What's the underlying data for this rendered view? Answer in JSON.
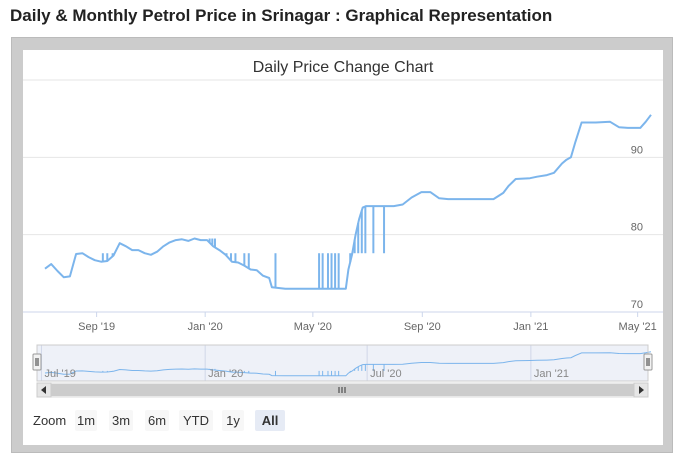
{
  "page": {
    "heading": "Daily & Monthly Petrol Price in Srinagar : Graphical Representation"
  },
  "chart_data": {
    "type": "line",
    "title": "Daily Price Change Chart",
    "xlabel": "",
    "ylabel": "",
    "ylim": [
      70,
      100
    ],
    "xlim": [
      "2019-07-05",
      "2021-05-16"
    ],
    "y_ticks": [
      "70",
      "80",
      "90"
    ],
    "x_ticks": [
      {
        "label": "Sep '19",
        "date": "2019-09-01"
      },
      {
        "label": "Jan '20",
        "date": "2020-01-01"
      },
      {
        "label": "May '20",
        "date": "2020-05-01"
      },
      {
        "label": "Sep '20",
        "date": "2020-09-01"
      },
      {
        "label": "Jan '21",
        "date": "2021-01-01"
      },
      {
        "label": "May '21",
        "date": "2021-05-01"
      }
    ],
    "grid": true,
    "legend": "none",
    "colors": {
      "line": "#7cb5ec",
      "grid": "#e6e6e6",
      "navigator_fill": "#e0e6f3",
      "navigator_mask": "#ccd6eb"
    },
    "series": [
      {
        "color": "#7cb5ec",
        "x": [
          "2019-07-05",
          "2019-07-12",
          "2019-07-19",
          "2019-07-26",
          "2019-08-02",
          "2019-08-09",
          "2019-08-16",
          "2019-08-23",
          "2019-08-30",
          "2019-09-06",
          "2019-09-13",
          "2019-09-20",
          "2019-09-27",
          "2019-10-04",
          "2019-10-11",
          "2019-10-18",
          "2019-10-25",
          "2019-11-01",
          "2019-11-08",
          "2019-11-15",
          "2019-11-22",
          "2019-11-29",
          "2019-12-06",
          "2019-12-13",
          "2019-12-20",
          "2019-12-27",
          "2020-01-03",
          "2020-01-10",
          "2020-01-17",
          "2020-01-24",
          "2020-01-31",
          "2020-02-07",
          "2020-02-14",
          "2020-02-21",
          "2020-02-28",
          "2020-03-06",
          "2020-03-13",
          "2020-03-16",
          "2020-03-31",
          "2020-04-15",
          "2020-05-01",
          "2020-05-15",
          "2020-05-31",
          "2020-06-07",
          "2020-06-10",
          "2020-06-14",
          "2020-06-18",
          "2020-06-22",
          "2020-06-26",
          "2020-06-30",
          "2020-07-15",
          "2020-07-31",
          "2020-08-10",
          "2020-08-20",
          "2020-08-31",
          "2020-09-10",
          "2020-09-20",
          "2020-09-30",
          "2020-10-15",
          "2020-10-31",
          "2020-11-15",
          "2020-11-20",
          "2020-12-01",
          "2020-12-07",
          "2020-12-15",
          "2020-12-31",
          "2021-01-08",
          "2021-01-19",
          "2021-01-27",
          "2021-02-05",
          "2021-02-10",
          "2021-02-15",
          "2021-02-20",
          "2021-02-27",
          "2021-03-15",
          "2021-03-31",
          "2021-04-10",
          "2021-04-20",
          "2021-05-04",
          "2021-05-10",
          "2021-05-16"
        ],
        "y": [
          75.6,
          76.2,
          75.3,
          74.5,
          74.6,
          77.5,
          77.6,
          77.1,
          76.7,
          76.5,
          76.6,
          77.3,
          78.9,
          78.5,
          78.0,
          78.0,
          77.6,
          77.4,
          77.8,
          78.5,
          79.0,
          79.3,
          79.4,
          79.2,
          79.5,
          79.3,
          79.3,
          78.5,
          78.0,
          77.4,
          76.5,
          76.4,
          76.0,
          75.5,
          75.4,
          74.7,
          74.4,
          73.2,
          73.0,
          73.0,
          73.0,
          73.0,
          73.0,
          73.0,
          75.5,
          77.4,
          80.0,
          82.0,
          83.5,
          83.7,
          83.7,
          83.7,
          83.9,
          84.8,
          85.5,
          85.5,
          84.7,
          84.6,
          84.6,
          84.6,
          84.6,
          84.6,
          85.4,
          86.3,
          87.2,
          87.3,
          87.5,
          87.7,
          88.0,
          89.2,
          89.7,
          90.0,
          92.0,
          94.5,
          94.5,
          94.6,
          93.9,
          93.8,
          93.8,
          94.6,
          95.5
        ]
      }
    ],
    "spikes": [
      {
        "x": "2019-09-08",
        "y": 77.6
      },
      {
        "x": "2019-09-13",
        "y": 77.6
      },
      {
        "x": "2019-09-19",
        "y": 77.6
      },
      {
        "x": "2020-01-06",
        "y": 79.5
      },
      {
        "x": "2020-01-09",
        "y": 79.5
      },
      {
        "x": "2020-01-12",
        "y": 79.5
      },
      {
        "x": "2020-01-25",
        "y": 77.6
      },
      {
        "x": "2020-01-30",
        "y": 77.6
      },
      {
        "x": "2020-02-04",
        "y": 77.6
      },
      {
        "x": "2020-02-14",
        "y": 77.6
      },
      {
        "x": "2020-02-19",
        "y": 77.6
      },
      {
        "x": "2020-03-20",
        "y": 77.6
      },
      {
        "x": "2020-05-08",
        "y": 77.6
      },
      {
        "x": "2020-05-12",
        "y": 77.6
      },
      {
        "x": "2020-05-18",
        "y": 77.6
      },
      {
        "x": "2020-05-22",
        "y": 77.6
      },
      {
        "x": "2020-05-26",
        "y": 77.6
      },
      {
        "x": "2020-05-30",
        "y": 77.6
      },
      {
        "x": "2020-06-12",
        "y": 77.6
      },
      {
        "x": "2020-06-14",
        "y": 77.6
      },
      {
        "x": "2020-06-17",
        "y": 77.6
      },
      {
        "x": "2020-06-21",
        "y": 77.6
      },
      {
        "x": "2020-06-25",
        "y": 77.6
      },
      {
        "x": "2020-06-29",
        "y": 77.6
      },
      {
        "x": "2020-07-08",
        "y": 77.6
      },
      {
        "x": "2020-07-20",
        "y": 77.6
      }
    ],
    "navigator": {
      "x_ticks": [
        {
          "label": "Jul '19",
          "date": "2019-07-01"
        },
        {
          "label": "Jan '20",
          "date": "2020-01-01"
        },
        {
          "label": "Jul '20",
          "date": "2020-07-01"
        },
        {
          "label": "Jan '21",
          "date": "2021-01-01"
        }
      ]
    }
  },
  "range_selector": {
    "label": "Zoom",
    "buttons": [
      {
        "label": "1m",
        "selected": false
      },
      {
        "label": "3m",
        "selected": false
      },
      {
        "label": "6m",
        "selected": false
      },
      {
        "label": "YTD",
        "selected": false
      },
      {
        "label": "1y",
        "selected": false
      },
      {
        "label": "All",
        "selected": true
      }
    ]
  },
  "scrollbar": {
    "left_arrow_icon": "arrow-left-icon",
    "right_arrow_icon": "arrow-right-icon",
    "grip_icon": "grip-icon"
  }
}
